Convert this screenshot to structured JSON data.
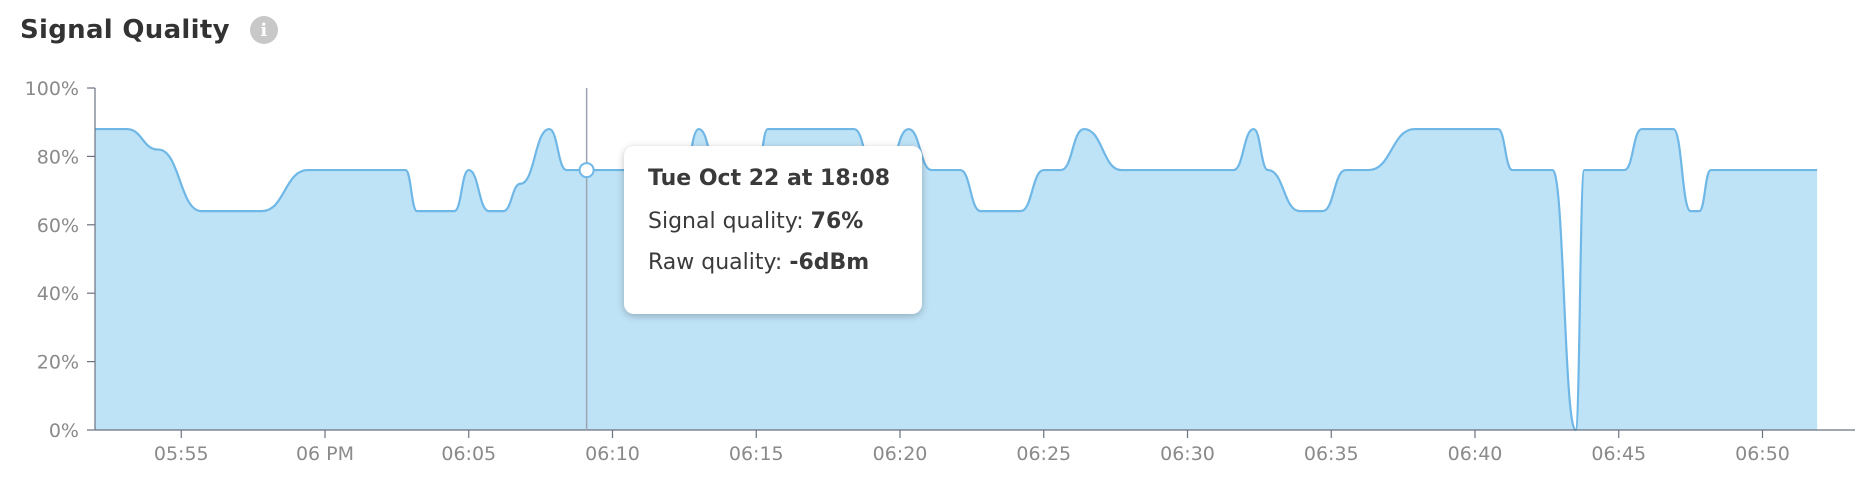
{
  "header": {
    "title": "Signal Quality",
    "info_icon": "info-icon"
  },
  "tooltip": {
    "title": "Tue Oct 22 at 18:08",
    "signal_label": "Signal quality:",
    "signal_value": "76%",
    "raw_label": "Raw quality:",
    "raw_value": "-6dBm"
  },
  "chart_data": {
    "type": "area",
    "title": "Signal Quality",
    "xlabel": "",
    "ylabel": "",
    "ylim": [
      0,
      100
    ],
    "xlim": [
      "17:52",
      "18:52"
    ],
    "y_ticks": [
      "0%",
      "20%",
      "40%",
      "60%",
      "80%",
      "100%"
    ],
    "x_ticks": [
      "05:55",
      "06 PM",
      "06:05",
      "06:10",
      "06:15",
      "06:20",
      "06:25",
      "06:30",
      "06:35",
      "06:40",
      "06:45",
      "06:50"
    ],
    "x_tick_minutes": [
      55,
      60,
      65,
      70,
      75,
      80,
      85,
      90,
      95,
      100,
      105,
      110
    ],
    "grid": false,
    "colors": {
      "fill": "#bfe3f6",
      "line": "#6fb7e6",
      "axis": "#6b7280",
      "cursor": "#9aa5b1"
    },
    "series": [
      {
        "minutes": [
          52,
          52.6,
          53.1,
          54.2,
          55.7,
          56.6,
          57.1,
          57.8,
          59.4,
          60.8,
          61.6,
          62.8,
          63.2,
          63.9,
          64.5,
          65,
          65.7,
          66.2,
          66.8,
          67.8,
          68.4,
          69.1,
          70.5,
          71.1,
          71.9,
          72.3,
          73,
          73.7,
          74.2,
          74.9,
          75.4,
          75.8,
          76.2,
          78,
          78.4,
          79.1,
          79.5,
          80.3,
          81.1,
          82.1,
          82.8,
          83.5,
          84.2,
          85,
          85.6,
          86.4,
          87.7,
          88.2,
          88.8,
          90.9,
          91.6,
          92.3,
          92.8,
          93.9,
          94.7,
          95.5,
          96.3,
          97.9,
          98.8,
          99.3,
          99.6,
          100.8,
          101.3,
          102,
          102.3,
          102.7,
          103.5,
          103.8,
          104.5,
          105.2,
          105.8,
          106.4,
          106.9,
          107.5,
          107.8,
          108.2,
          109.1,
          109.7,
          111.9
        ],
        "values": [
          88,
          88,
          88,
          82,
          64,
          64,
          64,
          64,
          76,
          76,
          76,
          76,
          64,
          64,
          64,
          76,
          64,
          64,
          72,
          88,
          76,
          76,
          76,
          76,
          64,
          64,
          88,
          76,
          64,
          64,
          88,
          88,
          88,
          88,
          88,
          76,
          76,
          88,
          76,
          76,
          64,
          64,
          64,
          76,
          76,
          88,
          76,
          76,
          76,
          76,
          76,
          88,
          76,
          64,
          64,
          76,
          76,
          88,
          88,
          88,
          88,
          88,
          76,
          76,
          76,
          76,
          0,
          76,
          76,
          76,
          88,
          88,
          88,
          64,
          64,
          76,
          76,
          76,
          76
        ],
        "tooltip_point": {
          "minute": 69.1,
          "value": 76
        }
      }
    ]
  }
}
